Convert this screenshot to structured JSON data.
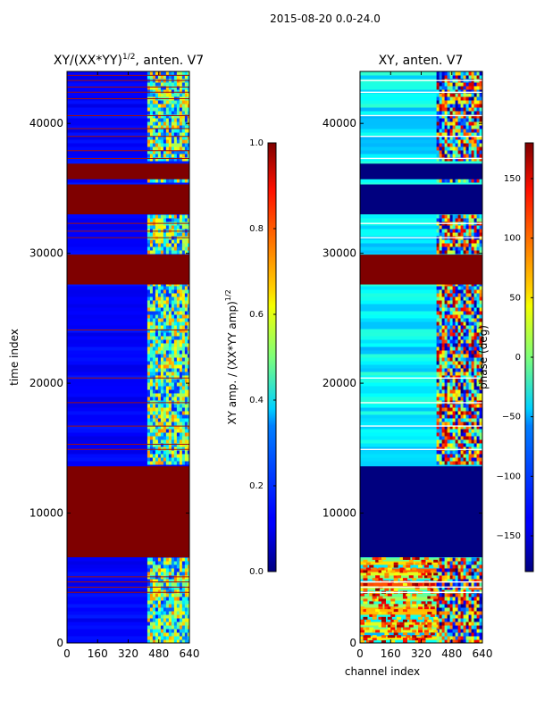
{
  "suptitle": "2015-08-20 0.0-24.0",
  "chart_data": [
    {
      "type": "heatmap",
      "title_main": "XY/(XX*YY)",
      "title_sup": "1/2",
      "title_tail": ", anten. V7",
      "xlabel": "",
      "ylabel": "time index",
      "xlim": [
        0,
        640
      ],
      "ylim": [
        0,
        44000
      ],
      "xticks": [
        0,
        160,
        320,
        480,
        640
      ],
      "yticks": [
        0,
        10000,
        20000,
        30000,
        40000
      ],
      "colorbar": {
        "label_main": "XY amp. / (XX*YY amp)",
        "label_sup": "1/2",
        "range": [
          0.0,
          1.0
        ],
        "ticks": [
          "0.0",
          "0.2",
          "0.4",
          "0.6",
          "0.8",
          "1.0"
        ]
      },
      "saturated_bands": [
        [
          6600,
          13600
        ],
        [
          27600,
          29900
        ],
        [
          33000,
          35300
        ],
        [
          35700,
          36900
        ]
      ],
      "flag_lines": [
        3900,
        4300,
        4700,
        5100,
        14900,
        15300,
        16700,
        18500,
        20400,
        24100,
        31200,
        31700,
        32300,
        37300,
        37900,
        39000,
        39600,
        40600,
        41900,
        42400,
        42800,
        43300,
        43700
      ],
      "active_channel_range": [
        420,
        640
      ]
    },
    {
      "type": "heatmap",
      "title": "XY, anten. V7",
      "xlabel": "channel index",
      "ylabel": "",
      "xlim": [
        0,
        640
      ],
      "ylim": [
        0,
        44000
      ],
      "xticks": [
        0,
        160,
        320,
        480,
        640
      ],
      "yticks": [
        0,
        10000,
        20000,
        30000,
        40000
      ],
      "colorbar": {
        "label": "phase (deg)",
        "range": [
          -180,
          180
        ],
        "ticks": [
          "−150",
          "−100",
          "−50",
          "0",
          "50",
          "100",
          "150"
        ]
      },
      "saturated_bands": [
        [
          27600,
          29900
        ]
      ],
      "empty_bands": [
        [
          6600,
          13600
        ],
        [
          33000,
          35300
        ],
        [
          35700,
          36900
        ]
      ],
      "flag_lines": [
        3900,
        4300,
        4700,
        14900,
        16700,
        18500,
        20400,
        31200,
        32300,
        37300,
        39000,
        40600,
        42400,
        43300
      ],
      "active_channel_range": [
        400,
        640
      ]
    }
  ]
}
